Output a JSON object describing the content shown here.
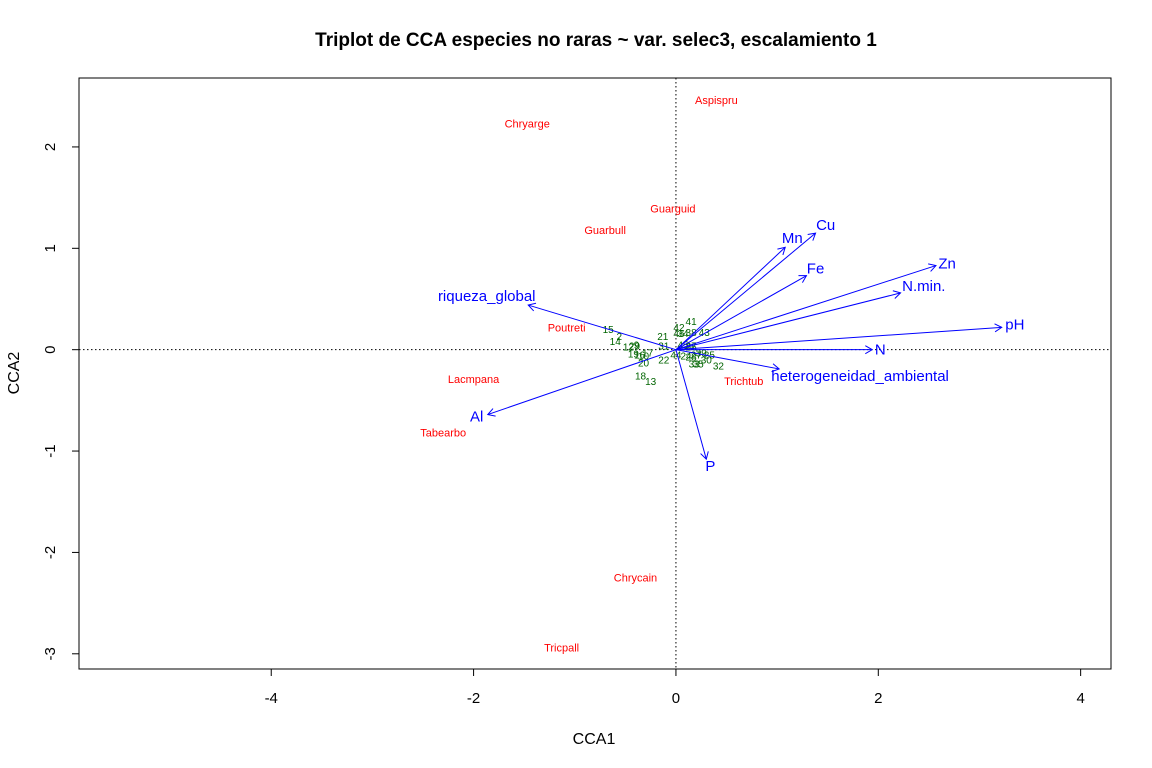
{
  "chart_data": {
    "type": "scatter",
    "title": "Triplot de CCA especies no raras ~ var. selec3, escalamiento 1",
    "xlabel": "CCA1",
    "ylabel": "CCA2",
    "xlim": [
      -5.9,
      4.3
    ],
    "ylim": [
      -3.15,
      2.68
    ],
    "xticks": [
      "-4",
      "-2",
      "0",
      "2",
      "4"
    ],
    "xtick_values": [
      -4,
      -2,
      0,
      2,
      4
    ],
    "yticks": [
      "-3",
      "-2",
      "-1",
      "0",
      "1",
      "2"
    ],
    "ytick_values": [
      -3,
      -2,
      -1,
      0,
      1,
      2
    ],
    "grid": false,
    "reference_lines": {
      "x": 0,
      "y": 0,
      "style": "dotted"
    },
    "colors": {
      "species": "#ff0000",
      "sites": "#006400",
      "environment": "#0000ff",
      "axes": "#000000"
    },
    "species": [
      {
        "name": "Aspispru",
        "x": 0.4,
        "y": 2.45
      },
      {
        "name": "Chryarge",
        "x": -1.47,
        "y": 2.22
      },
      {
        "name": "Guarguid",
        "x": -0.03,
        "y": 1.38
      },
      {
        "name": "Guarbull",
        "x": -0.7,
        "y": 1.17
      },
      {
        "name": "Poutreti",
        "x": -1.08,
        "y": 0.21
      },
      {
        "name": "Lacmpana",
        "x": -2.0,
        "y": -0.3
      },
      {
        "name": "Tabearbo",
        "x": -2.3,
        "y": -0.83
      },
      {
        "name": "Trichtub",
        "x": 0.67,
        "y": -0.32
      },
      {
        "name": "Chrycain",
        "x": -0.4,
        "y": -2.26
      },
      {
        "name": "Tricpall",
        "x": -1.13,
        "y": -2.95
      }
    ],
    "sites": [
      {
        "label": "15",
        "x": -0.67,
        "y": 0.19
      },
      {
        "label": "2",
        "x": -0.56,
        "y": 0.12
      },
      {
        "label": "14",
        "x": -0.6,
        "y": 0.07
      },
      {
        "label": "12",
        "x": -0.47,
        "y": 0.02
      },
      {
        "label": "9",
        "x": -0.39,
        "y": 0.04
      },
      {
        "label": "29",
        "x": -0.41,
        "y": 0.03
      },
      {
        "label": "19",
        "x": -0.42,
        "y": -0.05
      },
      {
        "label": "16",
        "x": -0.36,
        "y": -0.06
      },
      {
        "label": "17",
        "x": -0.28,
        "y": -0.04
      },
      {
        "label": "10",
        "x": -0.32,
        "y": -0.07
      },
      {
        "label": "20",
        "x": -0.32,
        "y": -0.14
      },
      {
        "label": "22",
        "x": -0.12,
        "y": -0.11
      },
      {
        "label": "18",
        "x": -0.35,
        "y": -0.27
      },
      {
        "label": "13",
        "x": -0.25,
        "y": -0.32
      },
      {
        "label": "21",
        "x": -0.13,
        "y": 0.12
      },
      {
        "label": "31",
        "x": -0.12,
        "y": 0.03
      },
      {
        "label": "42",
        "x": 0.03,
        "y": 0.21
      },
      {
        "label": "41",
        "x": 0.15,
        "y": 0.27
      },
      {
        "label": "46",
        "x": 0.03,
        "y": 0.15
      },
      {
        "label": "34",
        "x": 0.07,
        "y": 0.15
      },
      {
        "label": "38",
        "x": 0.15,
        "y": 0.16
      },
      {
        "label": "43",
        "x": 0.28,
        "y": 0.16
      },
      {
        "label": "45",
        "x": 0.07,
        "y": 0.04
      },
      {
        "label": "37",
        "x": 0.15,
        "y": 0.03
      },
      {
        "label": "26",
        "x": 0.15,
        "y": 0.02
      },
      {
        "label": "44",
        "x": 0.0,
        "y": -0.06
      },
      {
        "label": "24",
        "x": 0.1,
        "y": -0.07
      },
      {
        "label": "28",
        "x": 0.15,
        "y": -0.08
      },
      {
        "label": "27",
        "x": 0.2,
        "y": -0.06
      },
      {
        "label": "39",
        "x": 0.25,
        "y": -0.04
      },
      {
        "label": "25",
        "x": 0.33,
        "y": -0.06
      },
      {
        "label": "30",
        "x": 0.3,
        "y": -0.11
      },
      {
        "label": "33",
        "x": 0.18,
        "y": -0.15
      },
      {
        "label": "35",
        "x": 0.22,
        "y": -0.15
      },
      {
        "label": "32",
        "x": 0.42,
        "y": -0.17
      }
    ],
    "env_vectors": [
      {
        "name": "Cu",
        "x": 1.38,
        "y": 1.15,
        "label_x": 1.48,
        "label_y": 1.22
      },
      {
        "name": "Mn",
        "x": 1.08,
        "y": 1.01,
        "label_x": 1.15,
        "label_y": 1.09
      },
      {
        "name": "Fe",
        "x": 1.29,
        "y": 0.73,
        "label_x": 1.38,
        "label_y": 0.79
      },
      {
        "name": "Zn",
        "x": 2.57,
        "y": 0.83,
        "label_x": 2.68,
        "label_y": 0.84
      },
      {
        "name": "N.min.",
        "x": 2.22,
        "y": 0.56,
        "label_x": 2.45,
        "label_y": 0.62
      },
      {
        "name": "pH",
        "x": 3.22,
        "y": 0.22,
        "label_x": 3.35,
        "label_y": 0.24
      },
      {
        "name": "N",
        "x": 1.94,
        "y": 0.0,
        "label_x": 2.02,
        "label_y": -0.01
      },
      {
        "name": "heterogeneidad_ambiental",
        "x": 1.02,
        "y": -0.19,
        "label_x": 1.82,
        "label_y": -0.27
      },
      {
        "name": "P",
        "x": 0.3,
        "y": -1.08,
        "label_x": 0.34,
        "label_y": -1.16
      },
      {
        "name": "Al",
        "x": -1.86,
        "y": -0.64,
        "label_x": -1.97,
        "label_y": -0.67
      },
      {
        "name": "riqueza_global",
        "x": -1.46,
        "y": 0.44,
        "label_x": -1.87,
        "label_y": 0.52
      }
    ]
  }
}
